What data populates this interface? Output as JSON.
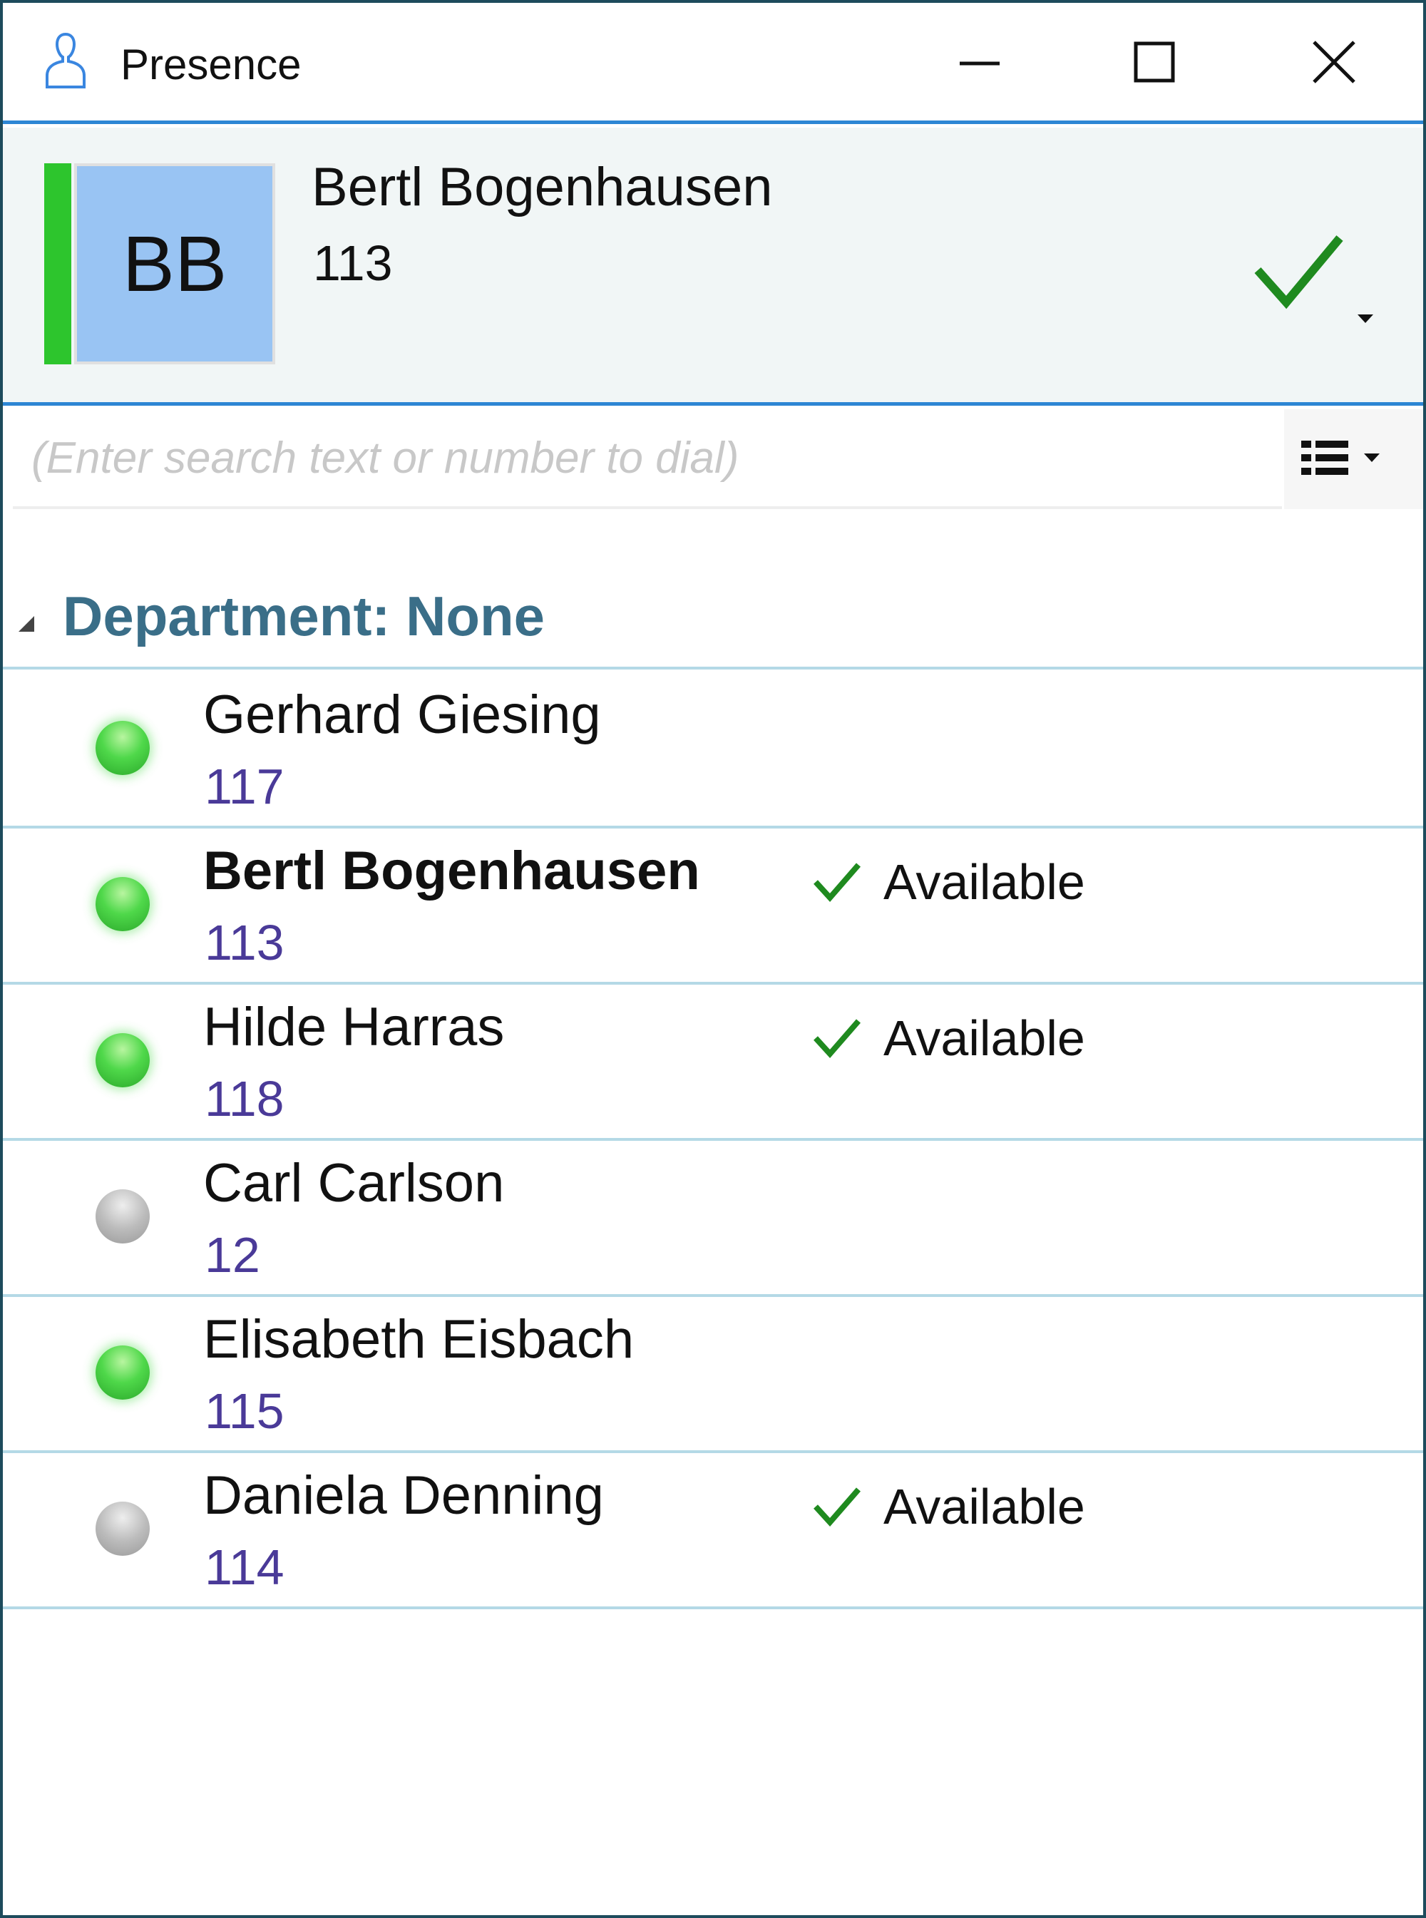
{
  "window": {
    "title": "Presence",
    "icon": "person-outline-icon"
  },
  "profile": {
    "initials": "BB",
    "name": "Bertl Bogenhausen",
    "number": "113",
    "status_color": "#2dc52d",
    "status_icon": "checkmark-icon"
  },
  "search": {
    "value": "",
    "placeholder": "(Enter search text or number to dial)"
  },
  "group": {
    "label": "Department: None"
  },
  "contacts": [
    {
      "name": "Gerhard Giesing",
      "number": "117",
      "online": true,
      "status": ""
    },
    {
      "name": "Bertl Bogenhausen",
      "number": "113",
      "online": true,
      "status": "Available",
      "self": true
    },
    {
      "name": "Hilde Harras",
      "number": "118",
      "online": true,
      "status": "Available"
    },
    {
      "name": "Carl Carlson",
      "number": "12",
      "online": false,
      "status": ""
    },
    {
      "name": "Elisabeth Eisbach",
      "number": "115",
      "online": true,
      "status": ""
    },
    {
      "name": "Daniela Denning",
      "number": "114",
      "online": false,
      "status": "Available"
    }
  ],
  "colors": {
    "accent": "#2d86d4",
    "available": "#1f8a1f",
    "number": "#4a3a98",
    "group": "#3a6e88"
  }
}
